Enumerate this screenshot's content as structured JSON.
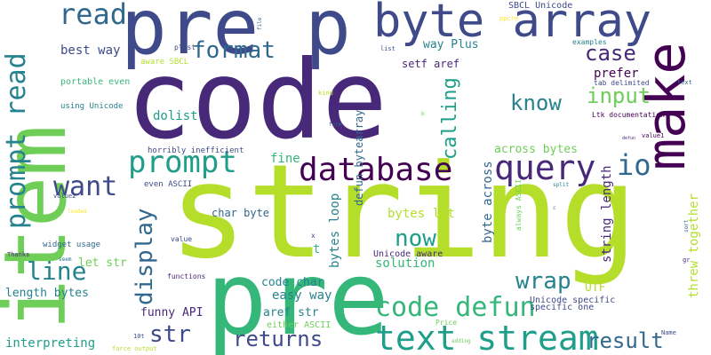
{
  "colors": {
    "background": "#ffffff",
    "palette": [
      "#440154",
      "#482878",
      "#3e4a89",
      "#31688e",
      "#26828e",
      "#1f9e89",
      "#35b779",
      "#6ece58",
      "#b5de2b",
      "#fde725"
    ]
  },
  "words": [
    {
      "text": "string",
      "color": "#b5de2b"
    },
    {
      "text": "code",
      "color": "#482878"
    },
    {
      "text": "pre",
      "color": "#35b779"
    },
    {
      "text": "item",
      "color": "#6ece58"
    },
    {
      "text": "pre p",
      "color": "#3e4a89"
    },
    {
      "text": "byte array",
      "color": "#3e4a89"
    },
    {
      "text": "make",
      "color": "#440154"
    },
    {
      "text": "text stream",
      "color": "#1f9e89"
    },
    {
      "text": "code defun",
      "color": "#35b779"
    },
    {
      "text": "database",
      "color": "#440154"
    },
    {
      "text": "prompt read",
      "color": "#26828e"
    },
    {
      "text": "query",
      "color": "#482878"
    },
    {
      "text": "prompt",
      "color": "#1f9e89"
    },
    {
      "text": "read",
      "color": "#31688e"
    },
    {
      "text": "format",
      "color": "#31688e"
    },
    {
      "text": "want",
      "color": "#3e4a89"
    },
    {
      "text": "line",
      "color": "#26828e"
    },
    {
      "text": "display",
      "color": "#31688e"
    },
    {
      "text": "now",
      "color": "#1f9e89"
    },
    {
      "text": "str",
      "color": "#3e4a89"
    },
    {
      "text": "returns",
      "color": "#3e4a89"
    },
    {
      "text": "result",
      "color": "#31688e"
    },
    {
      "text": "wrap",
      "color": "#26828e"
    },
    {
      "text": "input",
      "color": "#6ece58"
    },
    {
      "text": "calling",
      "color": "#1f9e89"
    },
    {
      "text": "case",
      "color": "#482878"
    },
    {
      "text": "know",
      "color": "#26828e"
    },
    {
      "text": "io",
      "color": "#31688e"
    },
    {
      "text": "string length",
      "color": "#482878"
    },
    {
      "text": "threw together",
      "color": "#b5de2b"
    },
    {
      "text": "byte across",
      "color": "#31688e"
    },
    {
      "text": "bytes loop",
      "color": "#26828e"
    },
    {
      "text": "defun bytearray",
      "color": "#31688e"
    },
    {
      "text": "setf aref",
      "color": "#482878"
    },
    {
      "text": "way Plus",
      "color": "#26828e"
    },
    {
      "text": "best way",
      "color": "#3e4a89"
    },
    {
      "text": "prefer",
      "color": "#440154"
    },
    {
      "text": "dolist",
      "color": "#1f9e89"
    },
    {
      "text": "fine",
      "color": "#35b779"
    },
    {
      "text": "across bytes",
      "color": "#6ece58"
    },
    {
      "text": "bytes let",
      "color": "#b5de2b"
    },
    {
      "text": "solution",
      "color": "#35b779"
    },
    {
      "text": "easy way",
      "color": "#26828e"
    },
    {
      "text": "code char",
      "color": "#26828e"
    },
    {
      "text": "aref str",
      "color": "#26828e"
    },
    {
      "text": "funny API",
      "color": "#482878"
    },
    {
      "text": "length bytes",
      "color": "#26828e"
    },
    {
      "text": "interpreting",
      "color": "#1f9e89"
    },
    {
      "text": "let str",
      "color": "#6ece58"
    },
    {
      "text": "char byte",
      "color": "#31688e"
    },
    {
      "text": "UTF",
      "color": "#b5de2b"
    },
    {
      "text": "Unicode aware",
      "color": "#482878"
    },
    {
      "text": "Unicode specific",
      "color": "#3e4a89"
    },
    {
      "text": "specific one",
      "color": "#3e4a89"
    },
    {
      "text": "either ASCII",
      "color": "#6ece58"
    },
    {
      "text": "SBCL Unicode",
      "color": "#3e4a89"
    },
    {
      "text": "horribly inefficient",
      "color": "#3e4a89"
    },
    {
      "text": "even ASCII",
      "color": "#3e4a89"
    },
    {
      "text": "portable even",
      "color": "#35b779"
    },
    {
      "text": "aware SBCL",
      "color": "#b5de2b"
    },
    {
      "text": "using Unicode",
      "color": "#26828e"
    },
    {
      "text": "widget usage",
      "color": "#31688e"
    },
    {
      "text": "Ltk documentation",
      "color": "#440154"
    },
    {
      "text": "tab delimited",
      "color": "#3e4a89"
    },
    {
      "text": "always ASCII",
      "color": "#6ece58"
    },
    {
      "text": "examples",
      "color": "#26828e"
    },
    {
      "text": "plist",
      "color": "#3e4a89"
    },
    {
      "text": "value",
      "color": "#3e4a89"
    },
    {
      "text": "functions",
      "color": "#482878"
    },
    {
      "text": "value1",
      "color": "#440154"
    },
    {
      "text": "value2",
      "color": "#3e4a89"
    },
    {
      "text": "text",
      "color": "#31688e"
    },
    {
      "text": "kind",
      "color": "#b5de2b"
    },
    {
      "text": "list",
      "color": "#3e4a89"
    },
    {
      "text": "file",
      "color": "#31688e"
    },
    {
      "text": "form",
      "color": "#31688e"
    },
    {
      "text": "split",
      "color": "#26828e"
    },
    {
      "text": "sort",
      "color": "#31688e"
    },
    {
      "text": "Thanks",
      "color": "#482878"
    },
    {
      "text": "seem",
      "color": "#31688e"
    },
    {
      "text": "loaded",
      "color": "#fde725"
    },
    {
      "text": "force output",
      "color": "#b5de2b"
    },
    {
      "text": "adding",
      "color": "#6ece58"
    },
    {
      "text": "Price",
      "color": "#6ece58"
    },
    {
      "text": "Name",
      "color": "#3e4a89"
    },
    {
      "text": "10t",
      "color": "#3e4a89"
    },
    {
      "text": "ppcre",
      "color": "#fde725"
    },
    {
      "text": "defun",
      "color": "#482878"
    },
    {
      "text": "x",
      "color": "#3e4a89"
    },
    {
      "text": "t",
      "color": "#35b779"
    },
    {
      "text": "b",
      "color": "#6ece58"
    },
    {
      "text": "c",
      "color": "#26828e"
    },
    {
      "text": "gr",
      "color": "#482878"
    }
  ]
}
